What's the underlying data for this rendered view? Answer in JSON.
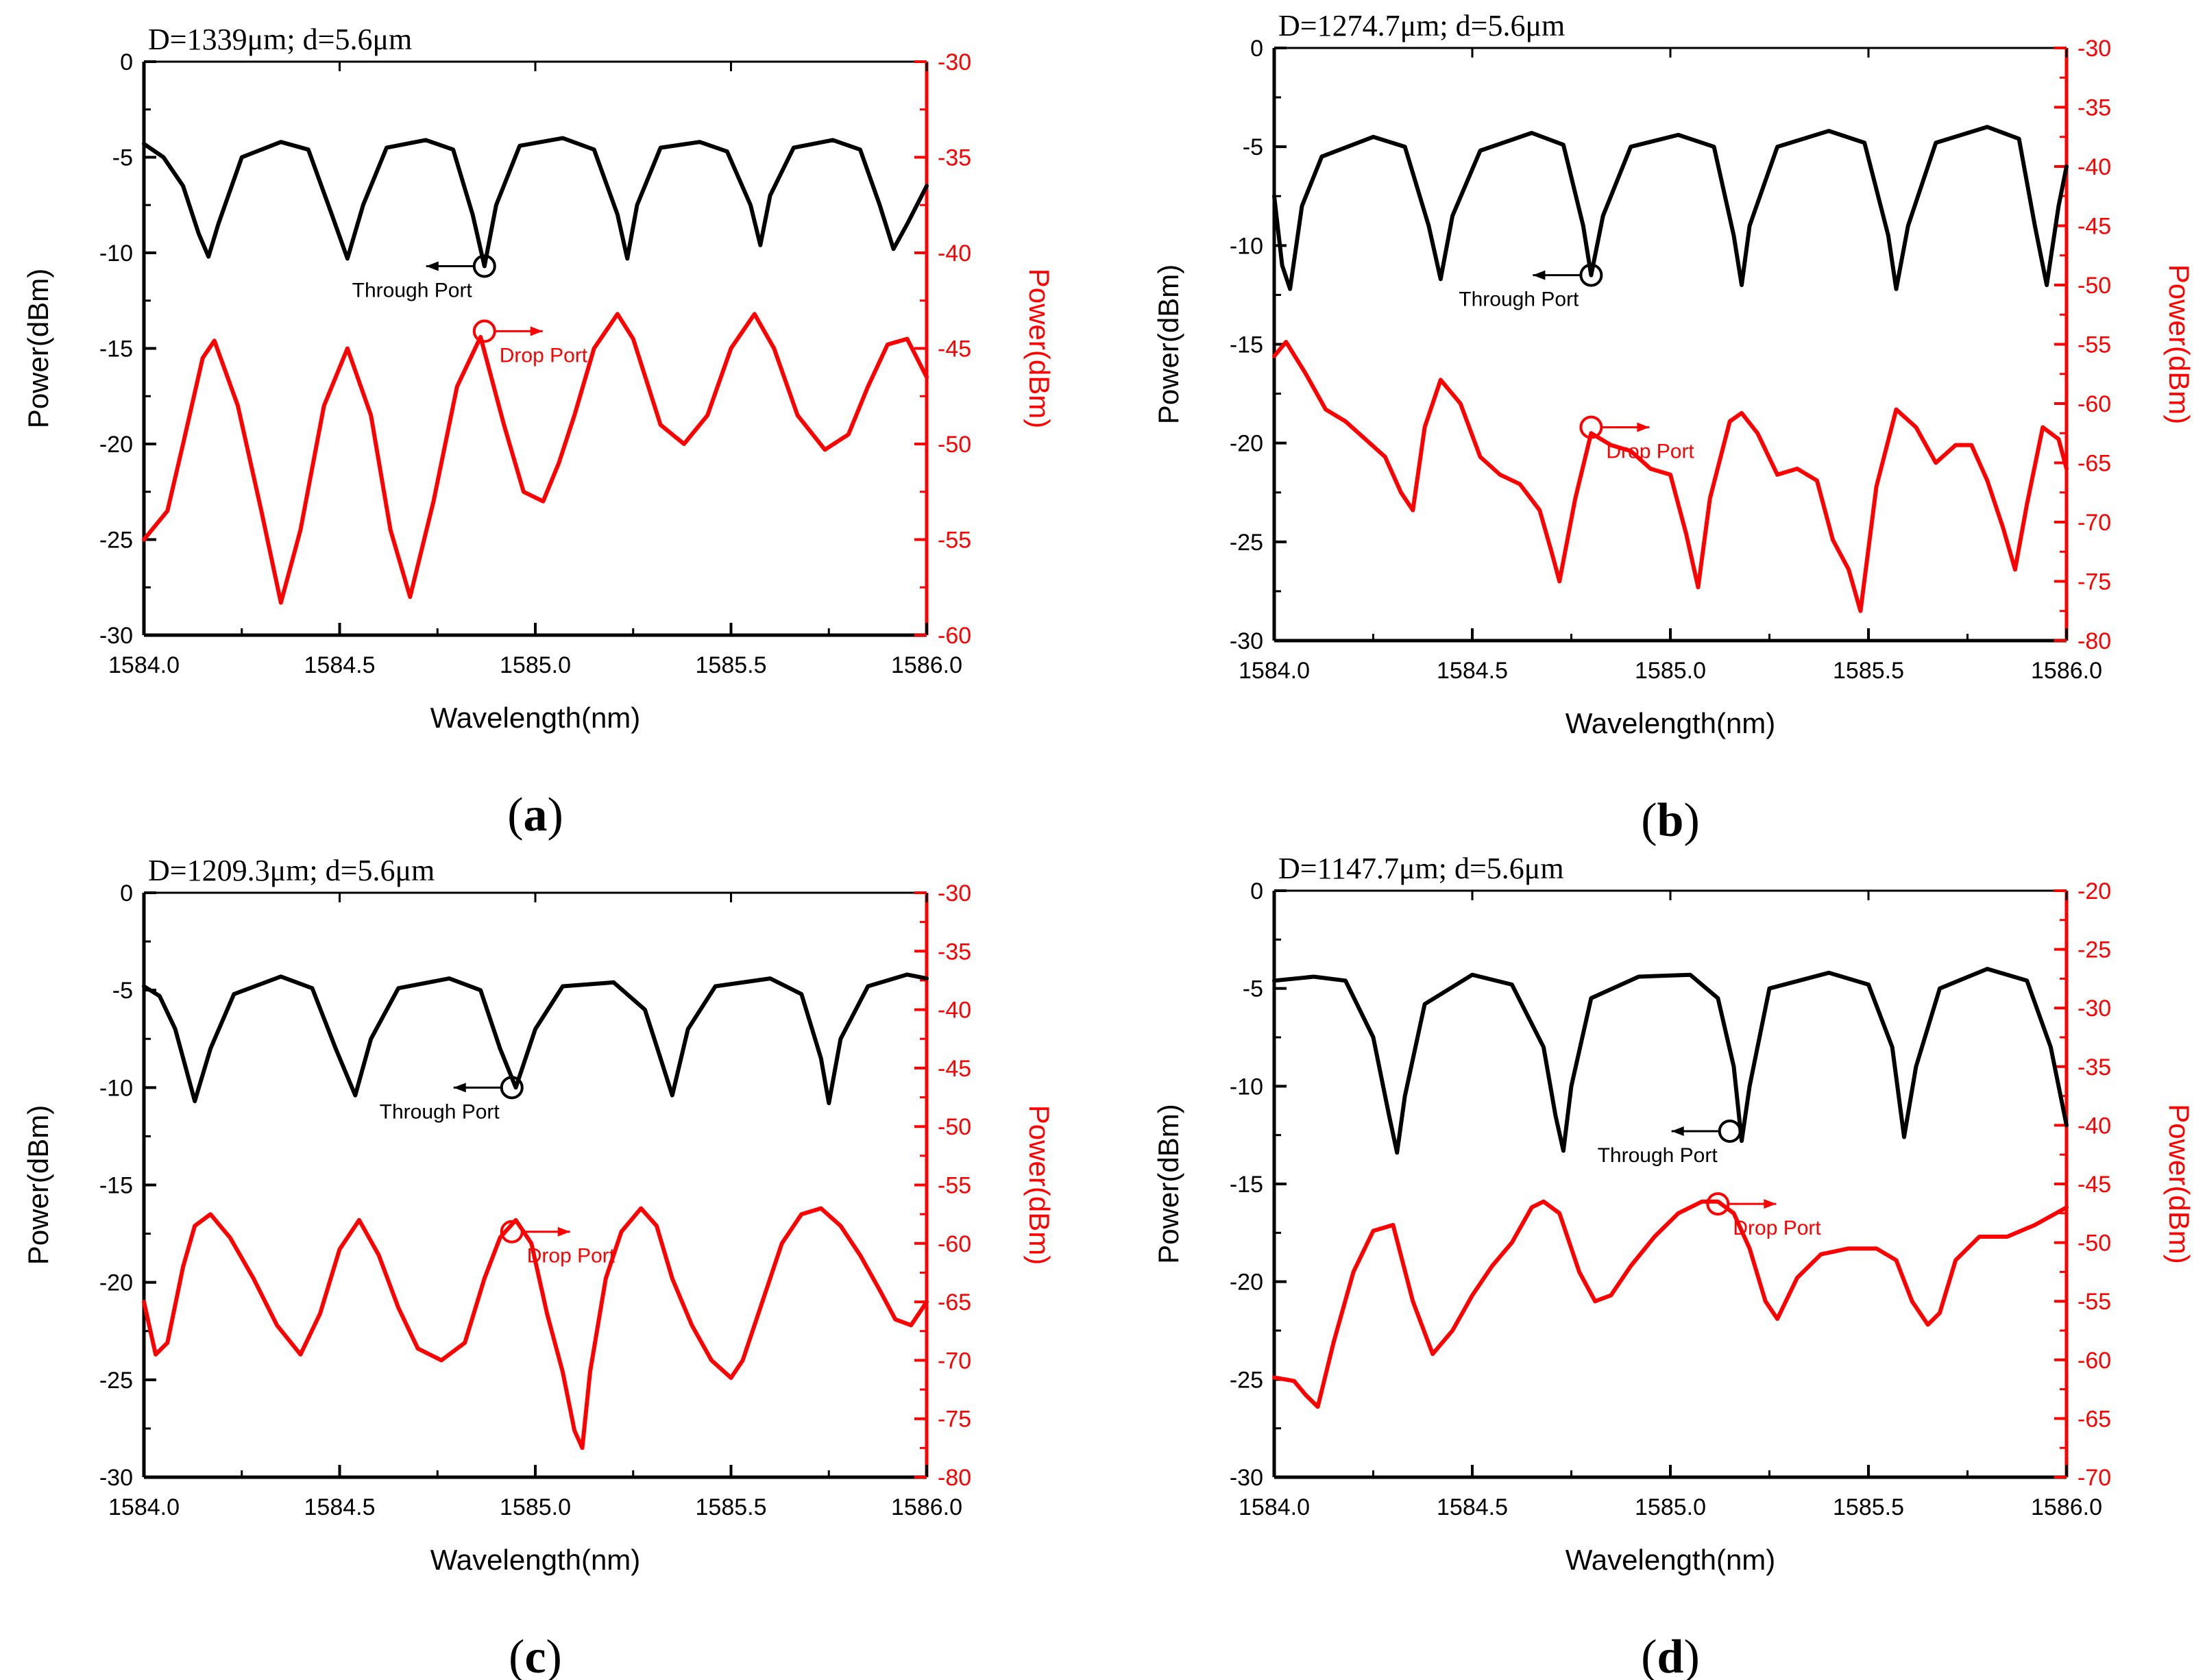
{
  "colors": {
    "through": "#000000",
    "drop": "#ff0000",
    "axis": "#000000"
  },
  "chart_data": [
    {
      "type": "line",
      "title": "D=1339μm; d=5.6μm",
      "caption_letter": "a",
      "xlabel": "Wavelength(nm)",
      "ylabel": "Power(dBm)",
      "y2label": "Power(dBm)",
      "xlim": [
        1584.0,
        1586.0
      ],
      "ylim": [
        -30,
        0
      ],
      "y2lim": [
        -60,
        -30
      ],
      "xticks": [
        1584.0,
        1584.5,
        1585.0,
        1585.5,
        1586.0
      ],
      "xtick_labels": [
        "1584.0",
        "1584.5",
        "1585.0",
        "1585.5",
        "1586.0"
      ],
      "yticks": [
        0,
        -5,
        -10,
        -15,
        -20,
        -25,
        -30
      ],
      "ytick_labels": [
        "0",
        "-5",
        "-10",
        "-15",
        "-20",
        "-25",
        "-30"
      ],
      "y2ticks": [
        -30,
        -35,
        -40,
        -45,
        -50,
        -55,
        -60
      ],
      "y2tick_labels": [
        "-30",
        "-35",
        "-40",
        "-45",
        "-50",
        "-55",
        "-60"
      ],
      "series": [
        {
          "name": "Through Port",
          "axis": "left",
          "x": [
            1584.0,
            1584.05,
            1584.1,
            1584.14,
            1584.165,
            1584.19,
            1584.25,
            1584.35,
            1584.42,
            1584.48,
            1584.52,
            1584.56,
            1584.62,
            1584.72,
            1584.79,
            1584.84,
            1584.87,
            1584.9,
            1584.96,
            1585.07,
            1585.15,
            1585.21,
            1585.235,
            1585.26,
            1585.32,
            1585.42,
            1585.49,
            1585.55,
            1585.575,
            1585.6,
            1585.66,
            1585.76,
            1585.83,
            1585.88,
            1585.915,
            1585.95,
            1586.0
          ],
          "y": [
            -4.3,
            -5.0,
            -6.5,
            -9.0,
            -10.2,
            -8.5,
            -5.0,
            -4.2,
            -4.6,
            -8.0,
            -10.3,
            -7.5,
            -4.5,
            -4.1,
            -4.6,
            -8.0,
            -10.7,
            -7.5,
            -4.4,
            -4.0,
            -4.6,
            -8.0,
            -10.3,
            -7.5,
            -4.5,
            -4.2,
            -4.7,
            -7.5,
            -9.6,
            -7.0,
            -4.5,
            -4.1,
            -4.6,
            -7.5,
            -9.8,
            -8.5,
            -6.5
          ]
        },
        {
          "name": "Drop Port",
          "axis": "right",
          "x": [
            1584.0,
            1584.06,
            1584.1,
            1584.15,
            1584.18,
            1584.24,
            1584.3,
            1584.35,
            1584.4,
            1584.46,
            1584.52,
            1584.58,
            1584.63,
            1584.68,
            1584.74,
            1584.8,
            1584.86,
            1584.92,
            1584.97,
            1585.02,
            1585.06,
            1585.1,
            1585.15,
            1585.21,
            1585.25,
            1585.32,
            1585.38,
            1585.44,
            1585.5,
            1585.56,
            1585.61,
            1585.67,
            1585.74,
            1585.8,
            1585.85,
            1585.9,
            1585.95,
            1586.0
          ],
          "y": [
            -55.0,
            -53.5,
            -50.0,
            -45.5,
            -44.6,
            -48.0,
            -53.5,
            -58.3,
            -54.5,
            -48.0,
            -45.0,
            -48.5,
            -54.5,
            -58.0,
            -53.0,
            -47.0,
            -44.4,
            -49.0,
            -52.5,
            -53.0,
            -51.0,
            -48.5,
            -45.0,
            -43.2,
            -44.5,
            -49.0,
            -50.0,
            -48.5,
            -45.0,
            -43.2,
            -45.0,
            -48.5,
            -50.3,
            -49.5,
            -47.0,
            -44.8,
            -44.5,
            -46.5
          ]
        }
      ],
      "annotations": [
        {
          "label": "Through Port",
          "series": "Through Port",
          "x": 1584.87,
          "y": -10.7,
          "arrow": "left"
        },
        {
          "label": "Drop Port",
          "series": "Drop Port",
          "x": 1584.87,
          "y": -44.1,
          "arrow": "right"
        }
      ]
    },
    {
      "type": "line",
      "title": "D=1274.7μm; d=5.6μm",
      "caption_letter": "b",
      "xlabel": "Wavelength(nm)",
      "ylabel": "Power(dBm)",
      "y2label": "Power(dBm)",
      "xlim": [
        1584.0,
        1586.0
      ],
      "ylim": [
        -30,
        0
      ],
      "y2lim": [
        -80,
        -30
      ],
      "xticks": [
        1584.0,
        1584.5,
        1585.0,
        1585.5,
        1586.0
      ],
      "xtick_labels": [
        "1584.0",
        "1584.5",
        "1585.0",
        "1585.5",
        "1586.0"
      ],
      "yticks": [
        0,
        -5,
        -10,
        -15,
        -20,
        -25,
        -30
      ],
      "ytick_labels": [
        "0",
        "-5",
        "-10",
        "-15",
        "-20",
        "-25",
        "-30"
      ],
      "y2ticks": [
        -30,
        -35,
        -40,
        -45,
        -50,
        -55,
        -60,
        -65,
        -70,
        -75,
        -80
      ],
      "y2tick_labels": [
        "-30",
        "-35",
        "-40",
        "-45",
        "-50",
        "-55",
        "-60",
        "-65",
        "-70",
        "-75",
        "-80"
      ],
      "series": [
        {
          "name": "Through Port",
          "axis": "left",
          "x": [
            1584.0,
            1584.02,
            1584.04,
            1584.07,
            1584.12,
            1584.25,
            1584.33,
            1584.39,
            1584.42,
            1584.45,
            1584.52,
            1584.65,
            1584.73,
            1584.78,
            1584.8,
            1584.83,
            1584.9,
            1585.02,
            1585.11,
            1585.16,
            1585.18,
            1585.2,
            1585.27,
            1585.4,
            1585.49,
            1585.55,
            1585.57,
            1585.6,
            1585.67,
            1585.8,
            1585.88,
            1585.92,
            1585.95,
            1585.98,
            1586.0
          ],
          "y": [
            -7.5,
            -11.0,
            -12.2,
            -8.0,
            -5.5,
            -4.5,
            -5.0,
            -9.0,
            -11.7,
            -8.5,
            -5.2,
            -4.3,
            -4.9,
            -9.0,
            -11.5,
            -8.5,
            -5.0,
            -4.4,
            -5.0,
            -9.5,
            -12.0,
            -9.0,
            -5.0,
            -4.2,
            -4.8,
            -9.5,
            -12.2,
            -9.0,
            -4.8,
            -4.0,
            -4.6,
            -9.0,
            -12.0,
            -8.0,
            -6.0
          ]
        },
        {
          "name": "Drop Port",
          "axis": "right",
          "x": [
            1584.0,
            1584.03,
            1584.08,
            1584.13,
            1584.18,
            1584.23,
            1584.28,
            1584.32,
            1584.35,
            1584.38,
            1584.42,
            1584.47,
            1584.52,
            1584.57,
            1584.62,
            1584.67,
            1584.7,
            1584.72,
            1584.76,
            1584.8,
            1584.85,
            1584.9,
            1584.95,
            1585.0,
            1585.04,
            1585.07,
            1585.1,
            1585.15,
            1585.18,
            1585.22,
            1585.27,
            1585.32,
            1585.37,
            1585.41,
            1585.45,
            1585.48,
            1585.52,
            1585.57,
            1585.62,
            1585.67,
            1585.72,
            1585.76,
            1585.8,
            1585.84,
            1585.87,
            1585.9,
            1585.94,
            1585.98,
            1586.0
          ],
          "y": [
            -56.0,
            -54.8,
            -57.5,
            -60.5,
            -61.5,
            -63.0,
            -64.5,
            -67.5,
            -69.0,
            -62.0,
            -58.0,
            -60.0,
            -64.5,
            -66.0,
            -66.8,
            -69.0,
            -72.5,
            -75.0,
            -68.0,
            -62.5,
            -63.5,
            -64.0,
            -65.5,
            -66.0,
            -71.0,
            -75.5,
            -68.0,
            -61.5,
            -60.8,
            -62.5,
            -66.0,
            -65.5,
            -66.5,
            -71.5,
            -74.0,
            -77.5,
            -67.0,
            -60.5,
            -62.0,
            -65.0,
            -63.5,
            -63.5,
            -66.5,
            -70.5,
            -74.0,
            -68.5,
            -62.0,
            -63.0,
            -65.5
          ]
        }
      ],
      "annotations": [
        {
          "label": "Through Port",
          "series": "Through Port",
          "x": 1584.8,
          "y": -11.5,
          "arrow": "left"
        },
        {
          "label": "Drop Port",
          "series": "Drop Port",
          "x": 1584.8,
          "y": -62.0,
          "arrow": "right"
        }
      ]
    },
    {
      "type": "line",
      "title": "D=1209.3μm; d=5.6μm",
      "caption_letter": "c",
      "xlabel": "Wavelength(nm)",
      "ylabel": "Power(dBm)",
      "y2label": "Power(dBm)",
      "xlim": [
        1584.0,
        1586.0
      ],
      "ylim": [
        -30,
        0
      ],
      "y2lim": [
        -80,
        -30
      ],
      "xticks": [
        1584.0,
        1584.5,
        1585.0,
        1585.5,
        1586.0
      ],
      "xtick_labels": [
        "1584.0",
        "1584.5",
        "1585.0",
        "1585.5",
        "1586.0"
      ],
      "yticks": [
        0,
        -5,
        -10,
        -15,
        -20,
        -25,
        -30
      ],
      "ytick_labels": [
        "0",
        "-5",
        "-10",
        "-15",
        "-20",
        "-25",
        "-30"
      ],
      "y2ticks": [
        -30,
        -35,
        -40,
        -45,
        -50,
        -55,
        -60,
        -65,
        -70,
        -75,
        -80
      ],
      "y2tick_labels": [
        "-30",
        "-35",
        "-40",
        "-45",
        "-50",
        "-55",
        "-60",
        "-65",
        "-70",
        "-75",
        "-80"
      ],
      "series": [
        {
          "name": "Through Port",
          "axis": "left",
          "x": [
            1584.0,
            1584.04,
            1584.08,
            1584.13,
            1584.17,
            1584.23,
            1584.35,
            1584.43,
            1584.49,
            1584.54,
            1584.58,
            1584.65,
            1584.78,
            1584.86,
            1584.91,
            1584.95,
            1585.0,
            1585.07,
            1585.2,
            1585.28,
            1585.32,
            1585.35,
            1585.39,
            1585.46,
            1585.6,
            1585.68,
            1585.73,
            1585.75,
            1585.78,
            1585.85,
            1585.95,
            1586.0
          ],
          "y": [
            -4.8,
            -5.3,
            -7.0,
            -10.7,
            -8.0,
            -5.2,
            -4.3,
            -4.9,
            -8.0,
            -10.4,
            -7.5,
            -4.9,
            -4.4,
            -5.0,
            -8.0,
            -10.0,
            -7.0,
            -4.8,
            -4.6,
            -6.0,
            -8.5,
            -10.4,
            -7.0,
            -4.8,
            -4.4,
            -5.2,
            -8.5,
            -10.8,
            -7.5,
            -4.8,
            -4.2,
            -4.4
          ]
        },
        {
          "name": "Drop Port",
          "axis": "right",
          "x": [
            1584.0,
            1584.03,
            1584.06,
            1584.1,
            1584.13,
            1584.17,
            1584.22,
            1584.28,
            1584.34,
            1584.4,
            1584.45,
            1584.5,
            1584.55,
            1584.6,
            1584.65,
            1584.7,
            1584.76,
            1584.82,
            1584.87,
            1584.91,
            1584.95,
            1584.99,
            1585.03,
            1585.07,
            1585.1,
            1585.12,
            1585.14,
            1585.18,
            1585.22,
            1585.27,
            1585.31,
            1585.35,
            1585.4,
            1585.45,
            1585.5,
            1585.53,
            1585.58,
            1585.63,
            1585.68,
            1585.73,
            1585.78,
            1585.83,
            1585.88,
            1585.92,
            1585.96,
            1586.0
          ],
          "y": [
            -65.0,
            -69.5,
            -68.5,
            -62.0,
            -58.5,
            -57.5,
            -59.5,
            -63.0,
            -67.0,
            -69.5,
            -66.0,
            -60.5,
            -58.0,
            -61.0,
            -65.5,
            -69.0,
            -70.0,
            -68.5,
            -63.0,
            -59.5,
            -58.0,
            -60.0,
            -66.0,
            -71.0,
            -76.0,
            -77.5,
            -71.0,
            -63.0,
            -59.0,
            -57.0,
            -58.5,
            -63.0,
            -67.0,
            -70.0,
            -71.5,
            -70.0,
            -65.0,
            -60.0,
            -57.5,
            -57.0,
            -58.5,
            -61.0,
            -64.0,
            -66.5,
            -67.0,
            -65.0
          ]
        }
      ],
      "annotations": [
        {
          "label": "Through Port",
          "series": "Through Port",
          "x": 1584.94,
          "y": -10.0,
          "arrow": "left"
        },
        {
          "label": "Drop Port",
          "series": "Drop Port",
          "x": 1584.94,
          "y": -59.0,
          "arrow": "right"
        }
      ]
    },
    {
      "type": "line",
      "title": "D=1147.7μm; d=5.6μm",
      "caption_letter": "d",
      "xlabel": "Wavelength(nm)",
      "ylabel": "Power(dBm)",
      "y2label": "Power(dBm)",
      "xlim": [
        1584.0,
        1586.0
      ],
      "ylim": [
        -30,
        0
      ],
      "y2lim": [
        -70,
        -20
      ],
      "xticks": [
        1584.0,
        1584.5,
        1585.0,
        1585.5,
        1586.0
      ],
      "xtick_labels": [
        "1584.0",
        "1584.5",
        "1585.0",
        "1585.5",
        "1586.0"
      ],
      "yticks": [
        0,
        -5,
        -10,
        -15,
        -20,
        -25,
        -30
      ],
      "ytick_labels": [
        "0",
        "-5",
        "-10",
        "-15",
        "-20",
        "-25",
        "-30"
      ],
      "y2ticks": [
        -20,
        -25,
        -30,
        -35,
        -40,
        -45,
        -50,
        -55,
        -60,
        -65,
        -70
      ],
      "y2tick_labels": [
        "-20",
        "-25",
        "-30",
        "-35",
        "-40",
        "-45",
        "-50",
        "-55",
        "-60",
        "-65",
        "-70"
      ],
      "series": [
        {
          "name": "Through Port",
          "axis": "left",
          "x": [
            1584.0,
            1584.1,
            1584.18,
            1584.25,
            1584.29,
            1584.31,
            1584.33,
            1584.38,
            1584.5,
            1584.6,
            1584.68,
            1584.71,
            1584.73,
            1584.75,
            1584.8,
            1584.92,
            1585.05,
            1585.12,
            1585.16,
            1585.18,
            1585.2,
            1585.25,
            1585.4,
            1585.5,
            1585.56,
            1585.59,
            1585.62,
            1585.68,
            1585.8,
            1585.9,
            1585.96,
            1586.0
          ],
          "y": [
            -4.6,
            -4.4,
            -4.6,
            -7.5,
            -11.5,
            -13.4,
            -10.5,
            -5.8,
            -4.3,
            -4.8,
            -8.0,
            -11.5,
            -13.3,
            -10.0,
            -5.5,
            -4.4,
            -4.3,
            -5.5,
            -9.0,
            -12.8,
            -10.0,
            -5.0,
            -4.2,
            -4.8,
            -8.0,
            -12.6,
            -9.0,
            -5.0,
            -4.0,
            -4.6,
            -8.0,
            -12.0
          ]
        },
        {
          "name": "Drop Port",
          "axis": "right",
          "x": [
            1584.0,
            1584.05,
            1584.08,
            1584.11,
            1584.15,
            1584.2,
            1584.25,
            1584.3,
            1584.35,
            1584.4,
            1584.45,
            1584.5,
            1584.55,
            1584.6,
            1584.65,
            1584.68,
            1584.72,
            1584.77,
            1584.81,
            1584.85,
            1584.9,
            1584.96,
            1585.02,
            1585.08,
            1585.12,
            1585.16,
            1585.2,
            1585.24,
            1585.27,
            1585.32,
            1585.38,
            1585.45,
            1585.52,
            1585.57,
            1585.61,
            1585.65,
            1585.68,
            1585.72,
            1585.78,
            1585.85,
            1585.92,
            1586.0
          ],
          "y": [
            -61.5,
            -61.8,
            -63.0,
            -64.0,
            -58.5,
            -52.5,
            -49.0,
            -48.5,
            -55.0,
            -59.5,
            -57.5,
            -54.5,
            -52.0,
            -50.0,
            -47.0,
            -46.5,
            -47.5,
            -52.5,
            -55.0,
            -54.5,
            -52.0,
            -49.5,
            -47.5,
            -46.5,
            -46.5,
            -47.5,
            -50.5,
            -55.0,
            -56.5,
            -53.0,
            -51.0,
            -50.5,
            -50.5,
            -51.5,
            -55.0,
            -57.0,
            -56.0,
            -51.5,
            -49.5,
            -49.5,
            -48.5,
            -47.0
          ]
        }
      ],
      "annotations": [
        {
          "label": "Through Port",
          "series": "Through Port",
          "x": 1585.15,
          "y": -12.3,
          "arrow": "left"
        },
        {
          "label": "Drop Port",
          "series": "Drop Port",
          "x": 1585.12,
          "y": -46.7,
          "arrow": "right"
        }
      ]
    }
  ]
}
